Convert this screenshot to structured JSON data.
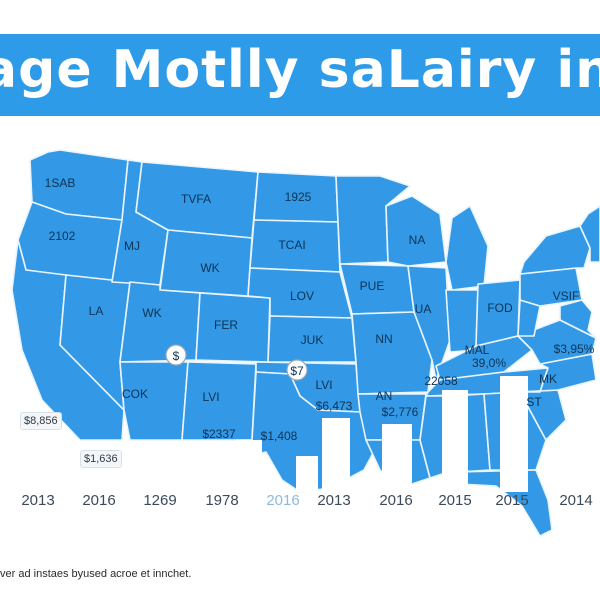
{
  "title": "age Motlly saLairy in",
  "footnote": "ver ad instaes byused acroe et innchet.",
  "side_labels": [
    "$8,856",
    "$1,636"
  ],
  "map_labels": [
    "1SAB",
    "2102",
    "TVFA",
    "1925",
    "MJ",
    "TCAI",
    "WK",
    "NA",
    "PUE",
    "LOV",
    "LA",
    "WK",
    "FER",
    "UA",
    "FOD",
    "VSIF",
    "JUK",
    "NN",
    "MAL",
    "$3,95%",
    "39,0%",
    "LVI",
    "MK",
    "COK",
    "LVI",
    "$6,473",
    "AN",
    "$2,776",
    "22058",
    "ST",
    "$7",
    "$"
  ],
  "bar_labels": [
    "$2337",
    "$1,408"
  ],
  "x_ticks": [
    "2013",
    "2016",
    "1269",
    "1978",
    "2016",
    "2013",
    "2016",
    "2015",
    "2015",
    "2014"
  ],
  "colors": {
    "accent": "#2e9be8",
    "state_fill": "#3399e6",
    "border": "#e9f4fc"
  }
}
